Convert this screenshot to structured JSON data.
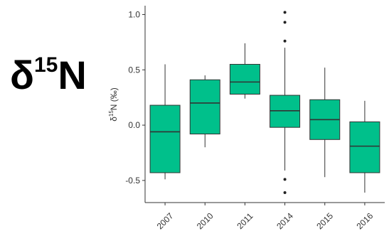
{
  "label": {
    "main": "δ",
    "sup": "15",
    "tail": "N"
  },
  "chart_data": {
    "type": "box",
    "ylabel_parts": {
      "pre": "δ",
      "sup": "15",
      "post": "N (‰)"
    },
    "ylim": [
      -0.7,
      1.08
    ],
    "yticks": [
      -0.5,
      0.0,
      0.5,
      1.0
    ],
    "ytick_labels": [
      "-0.5",
      "0.0",
      "0.5",
      "1.0"
    ],
    "categories": [
      "2007",
      "2010",
      "2011",
      "2014",
      "2015",
      "2016"
    ],
    "fill_color": "#00c08b",
    "boxes": [
      {
        "category": "2007",
        "whisker_low": -0.49,
        "q1": -0.43,
        "median": -0.06,
        "q3": 0.18,
        "whisker_high": 0.55,
        "outliers": []
      },
      {
        "category": "2010",
        "whisker_low": -0.2,
        "q1": -0.08,
        "median": 0.2,
        "q3": 0.41,
        "whisker_high": 0.45,
        "outliers": []
      },
      {
        "category": "2011",
        "whisker_low": 0.24,
        "q1": 0.28,
        "median": 0.39,
        "q3": 0.55,
        "whisker_high": 0.74,
        "outliers": []
      },
      {
        "category": "2014",
        "whisker_low": -0.41,
        "q1": -0.02,
        "median": 0.13,
        "q3": 0.27,
        "whisker_high": 0.7,
        "outliers": [
          1.02,
          0.93,
          0.76,
          -0.49,
          -0.61
        ]
      },
      {
        "category": "2015",
        "whisker_low": -0.47,
        "q1": -0.13,
        "median": 0.05,
        "q3": 0.23,
        "whisker_high": 0.52,
        "outliers": []
      },
      {
        "category": "2016",
        "whisker_low": -0.61,
        "q1": -0.43,
        "median": -0.19,
        "q3": 0.03,
        "whisker_high": 0.22,
        "outliers": []
      }
    ],
    "grid": false,
    "legend": "none"
  }
}
